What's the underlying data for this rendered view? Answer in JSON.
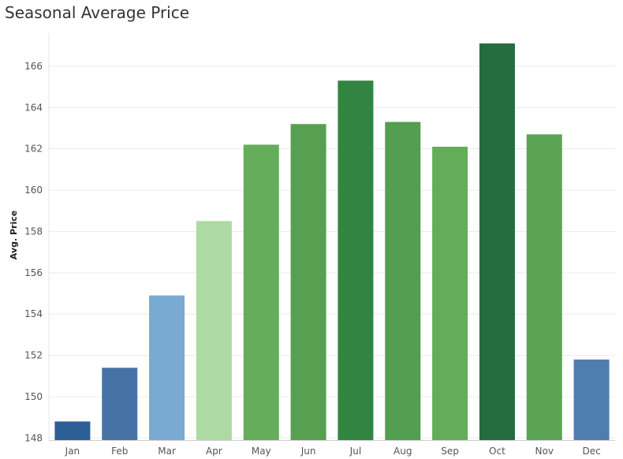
{
  "chart_data": {
    "type": "bar",
    "title": "Seasonal Average Price",
    "xlabel": "",
    "ylabel": "Avg. Price",
    "ylim": [
      147.9,
      167.6
    ],
    "yticks": [
      148,
      150,
      152,
      154,
      156,
      158,
      160,
      162,
      164,
      166
    ],
    "grid": true,
    "categories": [
      "Jan",
      "Feb",
      "Mar",
      "Apr",
      "May",
      "Jun",
      "Jul",
      "Aug",
      "Sep",
      "Oct",
      "Nov",
      "Dec"
    ],
    "values": [
      148.8,
      151.4,
      154.9,
      158.5,
      162.2,
      163.2,
      165.3,
      163.3,
      162.1,
      167.1,
      162.7,
      151.8
    ],
    "colors": [
      "#2c5f95",
      "#4672a6",
      "#7aa9d1",
      "#acdaa2",
      "#65ad5b",
      "#57a052",
      "#318541",
      "#539e50",
      "#63ad59",
      "#236c3e",
      "#5aa354",
      "#4f7dae"
    ]
  }
}
